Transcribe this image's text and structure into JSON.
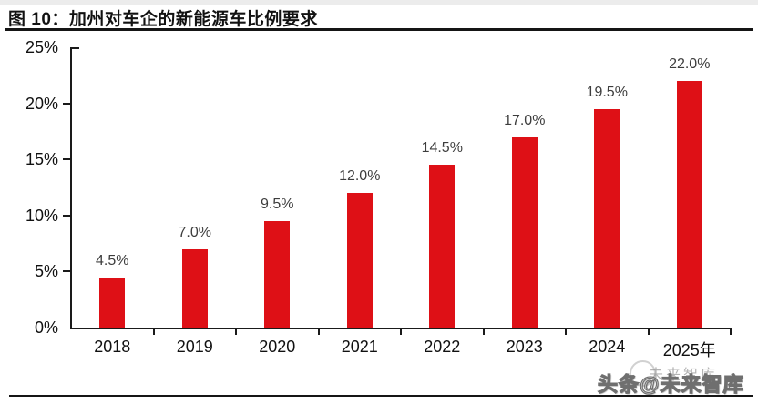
{
  "header": {
    "title": "图 10：加州对车企的新能源车比例要求"
  },
  "chart_data": {
    "type": "bar",
    "title": "加州对车企的新能源车比例要求",
    "categories": [
      "2018",
      "2019",
      "2020",
      "2021",
      "2022",
      "2023",
      "2024",
      "2025年"
    ],
    "values": [
      4.5,
      7.0,
      9.5,
      12.0,
      14.5,
      17.0,
      19.5,
      22.0
    ],
    "value_labels": [
      "4.5%",
      "7.0%",
      "9.5%",
      "12.0%",
      "14.5%",
      "17.0%",
      "19.5%",
      "22.0%"
    ],
    "y_tick_values": [
      0,
      5,
      10,
      15,
      20,
      25
    ],
    "y_tick_labels": [
      "0%",
      "5%",
      "10%",
      "15%",
      "20%",
      "25%"
    ],
    "ylim": [
      0,
      25
    ],
    "xlabel": "",
    "ylabel": "",
    "grid": false,
    "legend": false,
    "bar_color": "#de1016",
    "value_label_color": "#3d3d3d",
    "axis_color": "#1a1a1a"
  },
  "watermark": {
    "back_text": "未来智库",
    "front_text": "头条@未来智库"
  }
}
